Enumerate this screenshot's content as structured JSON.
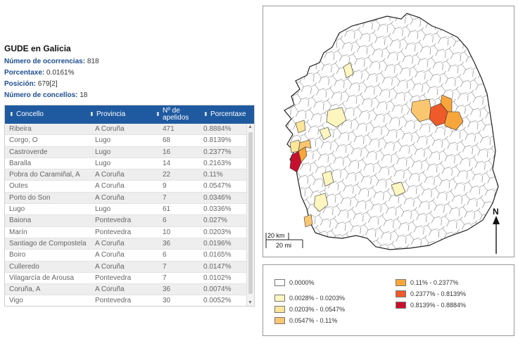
{
  "summary": {
    "title": "GUDE en Galicia",
    "ocorrencias_label": "Número de ocorrencias:",
    "ocorrencias_value": "818",
    "porcentaxe_label": "Porcentaxe:",
    "porcentaxe_value": "0.0161%",
    "posicion_label": "Posición:",
    "posicion_value": "679[2]",
    "concellos_label": "Número de concellos:",
    "concellos_value": "18"
  },
  "table": {
    "headers": [
      "Concello",
      "Provincia",
      "Nº de apelidos",
      "Porcentaxe"
    ],
    "rows": [
      [
        "Ribeira",
        "A Coruña",
        "471",
        "0.8884%"
      ],
      [
        "Corgo, O",
        "Lugo",
        "68",
        "0.8139%"
      ],
      [
        "Castroverde",
        "Lugo",
        "16",
        "0.2377%"
      ],
      [
        "Baralla",
        "Lugo",
        "14",
        "0.2163%"
      ],
      [
        "Pobra do Caramiñal, A",
        "A Coruña",
        "22",
        "0.11%"
      ],
      [
        "Outes",
        "A Coruña",
        "9",
        "0.0547%"
      ],
      [
        "Porto do Son",
        "A Coruña",
        "7",
        "0.0346%"
      ],
      [
        "Lugo",
        "Lugo",
        "61",
        "0.0336%"
      ],
      [
        "Baiona",
        "Pontevedra",
        "6",
        "0.027%"
      ],
      [
        "Marín",
        "Pontevedra",
        "10",
        "0.0203%"
      ],
      [
        "Santiago de Compostela",
        "A Coruña",
        "36",
        "0.0196%"
      ],
      [
        "Boiro",
        "A Coruña",
        "6",
        "0.0165%"
      ],
      [
        "Culleredo",
        "A Coruña",
        "7",
        "0.0147%"
      ],
      [
        "Vilagarcía de Arousa",
        "Pontevedra",
        "7",
        "0.0102%"
      ],
      [
        "Coruña, A",
        "A Coruña",
        "36",
        "0.0074%"
      ],
      [
        "Vigo",
        "Pontevedra",
        "30",
        "0.0052%"
      ]
    ]
  },
  "map": {
    "scale_km": "20 km",
    "scale_mi": "20 mi",
    "north": "N",
    "colors": {
      "c0": "#ffffff",
      "c1": "#fff6bf",
      "c2": "#fde59a",
      "c3": "#fbc670",
      "c4": "#f8a63b",
      "c5": "#ef5a2a",
      "c6": "#c8102e"
    }
  },
  "legend": [
    {
      "label": "0.0000%",
      "color": "#ffffff"
    },
    {
      "label": "0.0028% - 0.0203%",
      "color": "#fff6bf"
    },
    {
      "label": "0.0203% - 0.0547%",
      "color": "#fde59a"
    },
    {
      "label": "0.0547% - 0.11%",
      "color": "#fbc670"
    },
    {
      "label": "0.11% - 0.2377%",
      "color": "#f8a63b"
    },
    {
      "label": "0.2377% - 0.8139%",
      "color": "#ef5a2a"
    },
    {
      "label": "0.8139% - 0.8884%",
      "color": "#c8102e"
    }
  ]
}
